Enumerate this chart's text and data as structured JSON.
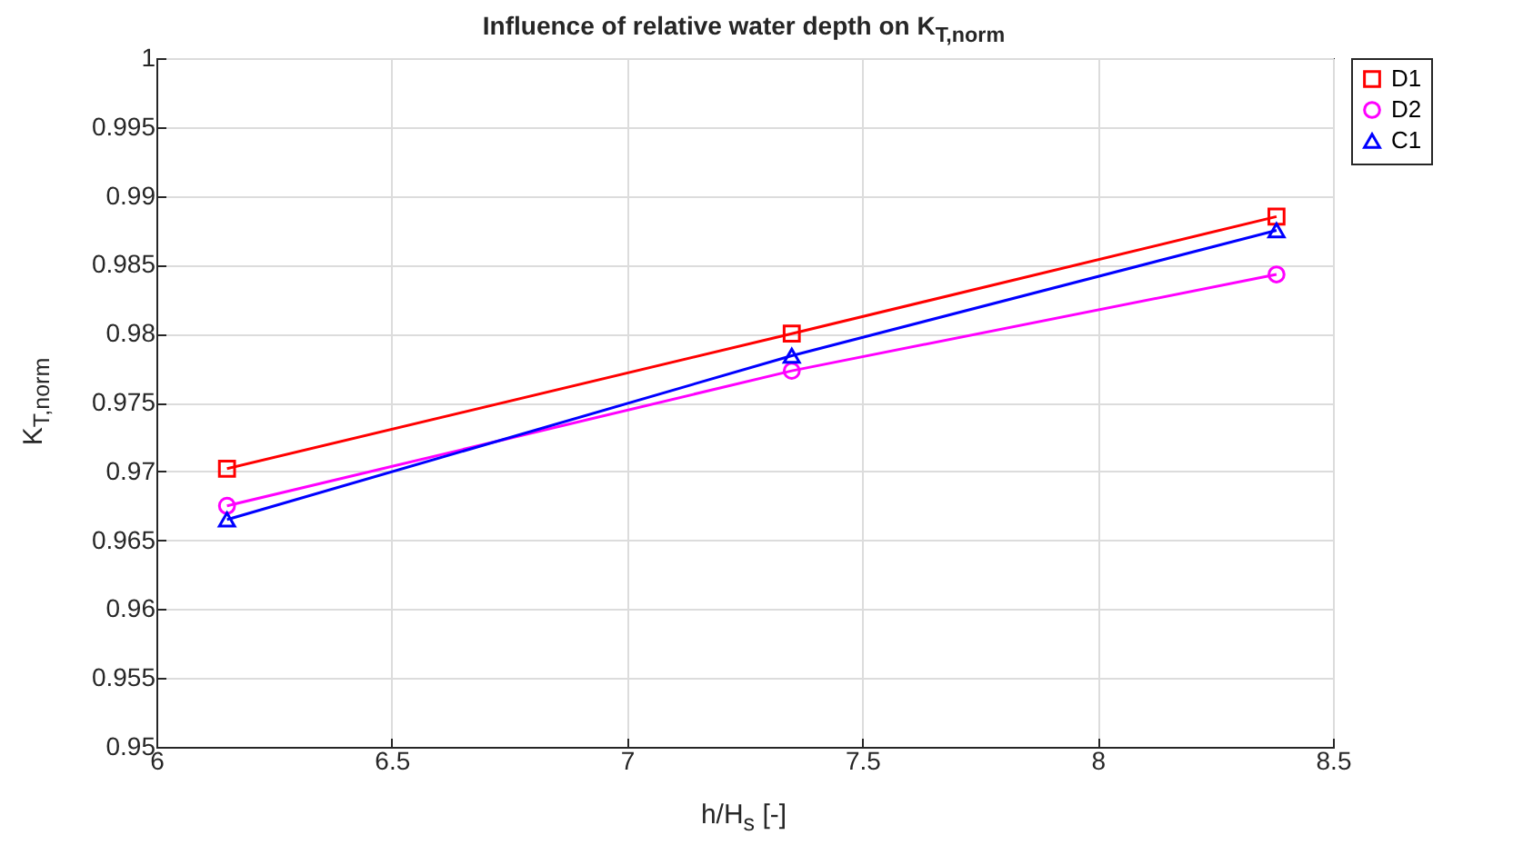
{
  "chart_data": {
    "type": "line",
    "title": "Influence of relative water depth on K$_{T,norm}$",
    "xlabel": "h/H$_{s}$ [-]",
    "ylabel": "K$_{T,norm}$",
    "x": [
      6.15,
      7.35,
      8.38
    ],
    "series": [
      {
        "name": "D1",
        "color": "#ff0000",
        "marker": "square",
        "values": [
          0.9702,
          0.98,
          0.9885
        ]
      },
      {
        "name": "D2",
        "color": "#ff00ff",
        "marker": "circle",
        "values": [
          0.9675,
          0.9773,
          0.9843
        ]
      },
      {
        "name": "C1",
        "color": "#0000ff",
        "marker": "triangle",
        "values": [
          0.9665,
          0.9784,
          0.9875
        ]
      }
    ],
    "xlim": [
      6,
      8.5
    ],
    "xticks": [
      6,
      6.5,
      7,
      7.5,
      8,
      8.5
    ],
    "ylim": [
      0.95,
      1
    ],
    "yticks": [
      0.95,
      0.955,
      0.96,
      0.965,
      0.97,
      0.975,
      0.98,
      0.985,
      0.99,
      0.995,
      1
    ],
    "grid": true,
    "legend": "top right",
    "line_style": "solid"
  }
}
